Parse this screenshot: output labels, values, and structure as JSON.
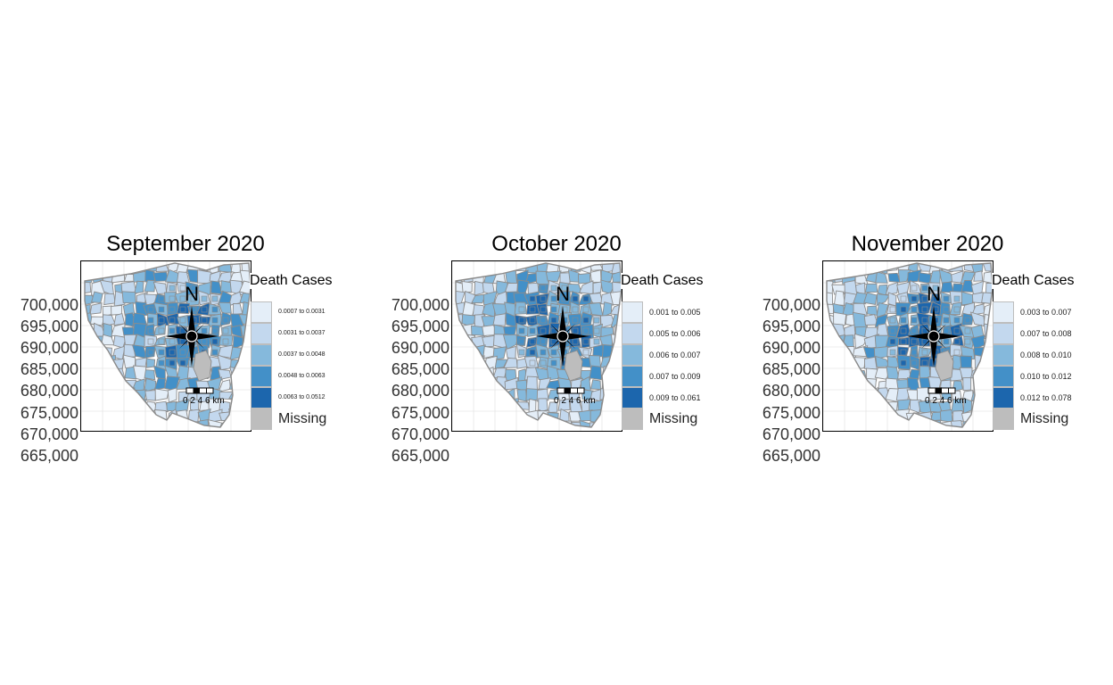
{
  "panels": [
    {
      "title": "September 2020",
      "y_ticks": [
        "700,000",
        "695,000",
        "690,000",
        "685,000",
        "680,000",
        "675,000",
        "670,000",
        "665,000"
      ],
      "legend_title": "Death Cases",
      "legend_items": [
        "0.0007 to 0.0031",
        "0.0031 to 0.0037",
        "0.0037 to 0.0048",
        "0.0048 to 0.0063",
        "0.0063 to 0.0512"
      ],
      "missing_label": "Missing",
      "north_label": "N",
      "scale_label": "0 2 4 6 km"
    },
    {
      "title": "October 2020",
      "y_ticks": [
        "700,000",
        "695,000",
        "690,000",
        "685,000",
        "680,000",
        "675,000",
        "670,000",
        "665,000"
      ],
      "legend_title": "Death Cases",
      "legend_items": [
        "0.001 to 0.005",
        "0.005 to 0.006",
        "0.006 to 0.007",
        "0.007 to 0.009",
        "0.009 to 0.061"
      ],
      "missing_label": "Missing",
      "north_label": "N",
      "scale_label": "0 2 4 6 km"
    },
    {
      "title": "November 2020",
      "y_ticks": [
        "700,000",
        "695,000",
        "690,000",
        "685,000",
        "680,000",
        "675,000",
        "670,000",
        "665,000"
      ],
      "legend_title": "Death Cases",
      "legend_items": [
        "0.003 to 0.007",
        "0.007 to 0.008",
        "0.008 to 0.010",
        "0.010 to 0.012",
        "0.012 to 0.078"
      ],
      "missing_label": "Missing",
      "north_label": "N",
      "scale_label": "0 2 4 6 km"
    }
  ],
  "colors": {
    "class_fills": [
      "#e4eef8",
      "#c3d8ee",
      "#85b9dc",
      "#4390c8",
      "#1c66ad"
    ],
    "missing": "#bdbdbd",
    "border": "#8c8c8c"
  }
}
